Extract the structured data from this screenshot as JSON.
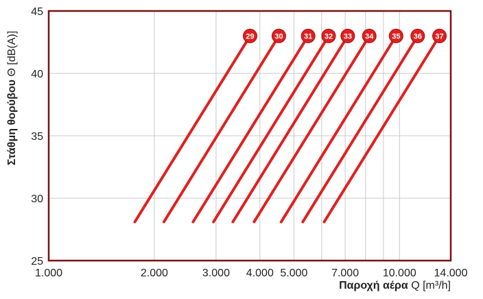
{
  "chart_data": {
    "type": "line",
    "x_scale": "log",
    "xlim": [
      1000,
      14000
    ],
    "ylim": [
      25,
      45
    ],
    "x_ticks": [
      1000,
      2000,
      3000,
      4000,
      5000,
      7000,
      10000,
      14000
    ],
    "x_tick_labels": [
      "1.000",
      "2.000",
      "3.000",
      "4.000",
      "5.000",
      "7.000",
      "10.000",
      "14.000"
    ],
    "x_grid": [
      1000,
      2000,
      3000,
      4000,
      5000,
      6000,
      7000,
      8000,
      9000,
      10000,
      14000
    ],
    "y_ticks": [
      25,
      30,
      35,
      40,
      45
    ],
    "y_tick_labels": [
      "25",
      "30",
      "35",
      "40",
      "45"
    ],
    "grid": true,
    "xlabel_bold": "Παροχή αέρα",
    "xlabel_rest": " Q [m³/h]",
    "ylabel_bold": "Στάθμη θορύβου",
    "ylabel_rest": " Θ [dB(A)]",
    "line_color": "#e02020",
    "frame_color": "#7a1010",
    "series": [
      {
        "name": "29",
        "points": [
          [
            1760,
            28.1
          ],
          [
            3750,
            43
          ]
        ]
      },
      {
        "name": "30",
        "points": [
          [
            2130,
            28.1
          ],
          [
            4530,
            43
          ]
        ]
      },
      {
        "name": "31",
        "points": [
          [
            2580,
            28.1
          ],
          [
            5490,
            43
          ]
        ]
      },
      {
        "name": "32",
        "points": [
          [
            2950,
            28.1
          ],
          [
            6280,
            43
          ]
        ]
      },
      {
        "name": "33",
        "points": [
          [
            3350,
            28.1
          ],
          [
            7120,
            43
          ]
        ]
      },
      {
        "name": "34",
        "points": [
          [
            3850,
            28.1
          ],
          [
            8200,
            43
          ]
        ]
      },
      {
        "name": "35",
        "points": [
          [
            4600,
            28.1
          ],
          [
            9780,
            43
          ]
        ]
      },
      {
        "name": "36",
        "points": [
          [
            5300,
            28.1
          ],
          [
            11270,
            43
          ]
        ]
      },
      {
        "name": "37",
        "points": [
          [
            6100,
            28.1
          ],
          [
            13000,
            43
          ]
        ]
      }
    ]
  }
}
